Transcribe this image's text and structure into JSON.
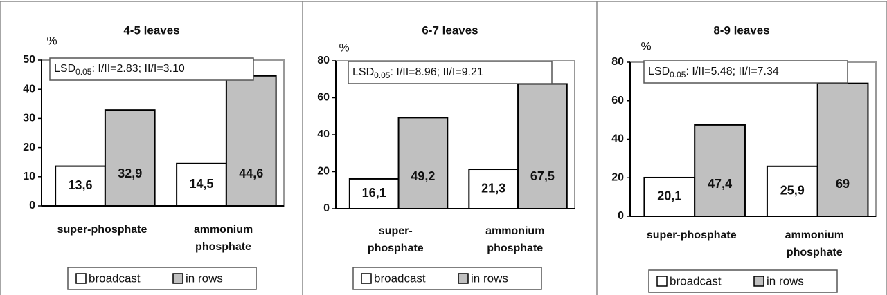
{
  "chart_data": [
    {
      "type": "bar",
      "title": "4-5 leaves",
      "y_label": "%",
      "categories": [
        "super-phosphate",
        "ammonium\nphosphate"
      ],
      "series": [
        {
          "name": "broadcast",
          "color": "#ffffff",
          "values": [
            13.6,
            14.5
          ],
          "value_labels": [
            "13,6",
            "14,5"
          ]
        },
        {
          "name": "in rows",
          "color": "#c0c0c0",
          "values": [
            32.9,
            44.6
          ],
          "value_labels": [
            "32,9",
            "44,6"
          ]
        }
      ],
      "ylim": [
        0,
        50
      ],
      "yticks": [
        0,
        10,
        20,
        30,
        40,
        50
      ],
      "annotation": {
        "text": "LSD",
        "subscript": "0.05",
        "rest": ": I/II=2.83; II/I=3.10"
      }
    },
    {
      "type": "bar",
      "title": "6-7 leaves",
      "y_label": "%",
      "categories": [
        "super-\nphosphate",
        "ammonium\nphosphate"
      ],
      "series": [
        {
          "name": "broadcast",
          "color": "#ffffff",
          "values": [
            16.1,
            21.3
          ],
          "value_labels": [
            "16,1",
            "21,3"
          ]
        },
        {
          "name": "in rows",
          "color": "#c0c0c0",
          "values": [
            49.2,
            67.5
          ],
          "value_labels": [
            "49,2",
            "67,5"
          ]
        }
      ],
      "ylim": [
        0,
        80
      ],
      "yticks": [
        0,
        20,
        40,
        60,
        80
      ],
      "annotation": {
        "text": "LSD",
        "subscript": "0.05",
        "rest": ": I/II=8.96; II/I=9.21"
      }
    },
    {
      "type": "bar",
      "title": "8-9 leaves",
      "y_label": "%",
      "categories": [
        "super-phosphate",
        "ammonium\nphosphate"
      ],
      "series": [
        {
          "name": "broadcast",
          "color": "#ffffff",
          "values": [
            20.1,
            25.9
          ],
          "value_labels": [
            "20,1",
            "25,9"
          ]
        },
        {
          "name": "in rows",
          "color": "#c0c0c0",
          "values": [
            47.4,
            69
          ],
          "value_labels": [
            "47,4",
            "69"
          ]
        }
      ],
      "ylim": [
        0,
        80
      ],
      "yticks": [
        0,
        20,
        40,
        60,
        80
      ],
      "annotation": {
        "text": "LSD",
        "subscript": "0.05",
        "rest": ": I/II=5.48; II/I=7.34"
      }
    }
  ]
}
